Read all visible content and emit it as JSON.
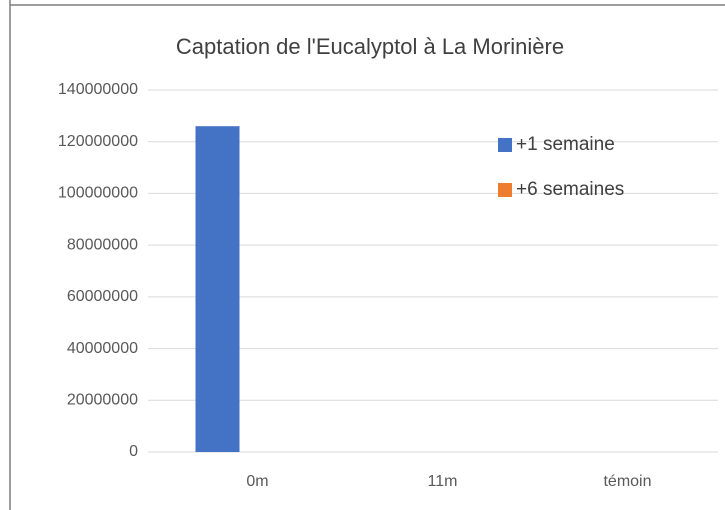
{
  "chart_data": {
    "type": "bar",
    "title": "Captation de l'Eucalyptol à La Morinière",
    "categories": [
      "0m",
      "11m",
      "témoin"
    ],
    "series": [
      {
        "name": "+1 semaine",
        "color": "#4472c4",
        "values": [
          126000000,
          0,
          0
        ]
      },
      {
        "name": "+6 semaines",
        "color": "#ed7d31",
        "values": [
          0,
          0,
          0
        ]
      }
    ],
    "ylim": [
      0,
      140000000
    ],
    "yticks": [
      0,
      20000000,
      40000000,
      60000000,
      80000000,
      100000000,
      120000000,
      140000000
    ],
    "grid": true,
    "legend": "right"
  }
}
